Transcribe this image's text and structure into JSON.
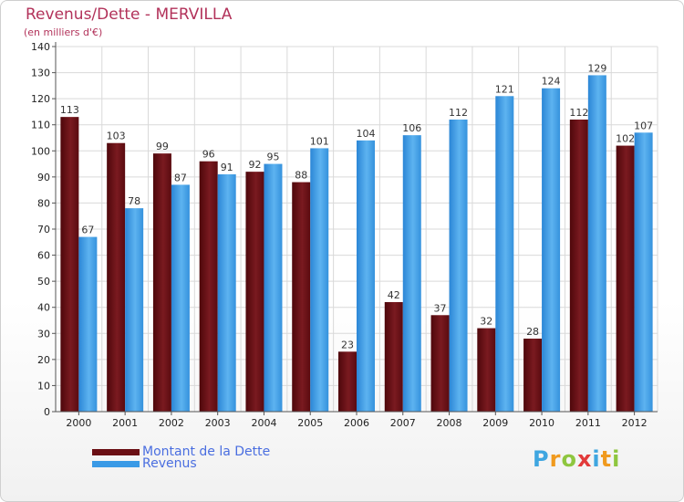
{
  "header": {
    "title": "Revenus/Dette - MERVILLA",
    "subtitle": "(en milliers d'€)"
  },
  "legend": {
    "items": [
      {
        "label": "Montant de la Dette",
        "color": "#6b0f14"
      },
      {
        "label": "Revenus",
        "color": "#3a9ae6"
      }
    ]
  },
  "logo": {
    "letters": [
      {
        "ch": "P",
        "color": "#3fa6e0"
      },
      {
        "ch": "r",
        "color": "#f09a1e"
      },
      {
        "ch": "o",
        "color": "#8ec63f"
      },
      {
        "ch": "x",
        "color": "#e23a3a"
      },
      {
        "ch": "i",
        "color": "#3fa6e0"
      },
      {
        "ch": "t",
        "color": "#f09a1e"
      },
      {
        "ch": "i",
        "color": "#8ec63f"
      }
    ]
  },
  "chart_data": {
    "type": "bar",
    "categories": [
      "2000",
      "2001",
      "2002",
      "2003",
      "2004",
      "2005",
      "2006",
      "2007",
      "2008",
      "2009",
      "2010",
      "2011",
      "2012"
    ],
    "series": [
      {
        "name": "Montant de la Dette",
        "color": "#6b0f14",
        "values": [
          113,
          103,
          99,
          96,
          92,
          88,
          23,
          42,
          37,
          32,
          28,
          112,
          102
        ]
      },
      {
        "name": "Revenus",
        "color": "#3a9ae6",
        "values": [
          67,
          78,
          87,
          91,
          95,
          101,
          104,
          106,
          112,
          121,
          124,
          129,
          107
        ]
      }
    ],
    "ylim": [
      0,
      140
    ],
    "yticks": [
      0,
      10,
      20,
      30,
      40,
      50,
      60,
      70,
      80,
      90,
      100,
      110,
      120,
      130,
      140
    ],
    "grid": true
  }
}
